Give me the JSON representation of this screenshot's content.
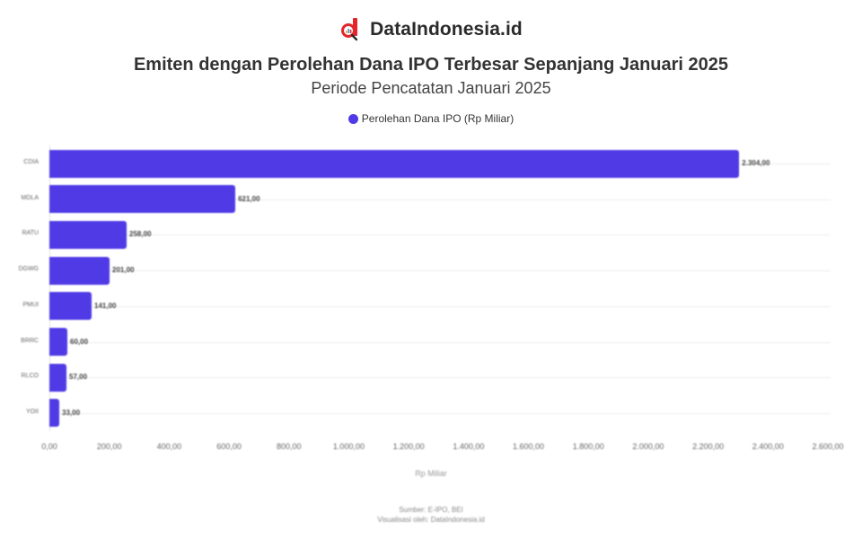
{
  "brand": {
    "name": "DataIndonesia.id",
    "logo_icon": "magnifier-chart-logo-icon"
  },
  "header": {
    "title": "Emiten dengan Perolehan Dana IPO Terbesar Sepanjang Januari 2025",
    "subtitle": "Periode Pencatatan Januari 2025"
  },
  "legend": {
    "items": [
      {
        "label": "Perolehan Dana IPO (Rp Miliar)",
        "color": "#4f3ae6"
      }
    ]
  },
  "footer": {
    "source": "Sumber: E-IPO, BEI",
    "credit": "Visualisasi oleh: DataIndonesia.id"
  },
  "colors": {
    "bar": "#4f3ae6",
    "grid": "#ececec"
  },
  "chart_data": {
    "type": "bar",
    "orientation": "horizontal",
    "title": "Emiten dengan Perolehan Dana IPO Terbesar Sepanjang Januari 2025",
    "subtitle": "Periode Pencatatan Januari 2025",
    "xlabel": "Rp Miliar",
    "ylabel": "",
    "categories": [
      "CDIA",
      "MDLA",
      "RATU",
      "DGWG",
      "PMUI",
      "BRRC",
      "RLCO",
      "YOII"
    ],
    "series": [
      {
        "name": "Perolehan Dana IPO (Rp Miliar)",
        "color": "#4f3ae6",
        "values": [
          2304.0,
          621.0,
          258.0,
          201.0,
          141.0,
          60.0,
          57.0,
          33.0
        ],
        "value_labels": [
          "2.304,00",
          "621,00",
          "258,00",
          "201,00",
          "141,00",
          "60,00",
          "57,00",
          "33,00"
        ]
      }
    ],
    "xlim": [
      0,
      2600
    ],
    "x_ticks": [
      "0,00",
      "200,00",
      "400,00",
      "600,00",
      "800,00",
      "1.000,00",
      "1.200,00",
      "1.400,00",
      "1.600,00",
      "1.800,00",
      "2.000,00",
      "2.200,00",
      "2.400,00",
      "2.600,00"
    ],
    "grid": true,
    "legend_position": "top"
  }
}
